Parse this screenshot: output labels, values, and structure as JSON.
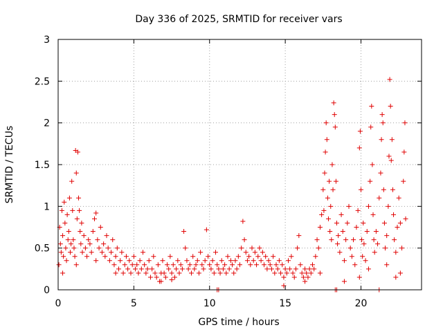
{
  "chart_data": {
    "type": "scatter",
    "title": "Day 336 of 2025, SRMTID for receiver vars",
    "xlabel": "GPS time / hours",
    "ylabel": "SRMTID / TECUs",
    "xlim": [
      0,
      24
    ],
    "ylim": [
      0,
      3
    ],
    "xticks": [
      0,
      5,
      10,
      15,
      20
    ],
    "xtick_labels": [
      "0",
      "5",
      "10",
      "15",
      "20"
    ],
    "yticks": [
      0,
      0.5,
      1,
      1.5,
      2,
      2.5,
      3
    ],
    "ytick_labels": [
      "0",
      "0.5",
      "1",
      "1.5",
      "2",
      "2.5",
      "3"
    ],
    "grid": true,
    "marker": "+",
    "series": [
      {
        "name": "SRMTID",
        "color": "#e00000",
        "points": [
          [
            0.05,
            0.3
          ],
          [
            0.1,
            0.75
          ],
          [
            0.15,
            0.55
          ],
          [
            0.2,
            0.45
          ],
          [
            0.25,
            0.95
          ],
          [
            0.3,
            0.65
          ],
          [
            0.35,
            0.4
          ],
          [
            0.4,
            1.05
          ],
          [
            0.45,
            0.8
          ],
          [
            0.5,
            0.5
          ],
          [
            0.55,
            0.35
          ],
          [
            0.6,
            0.9
          ],
          [
            0.65,
            0.6
          ],
          [
            0.7,
            0.7
          ],
          [
            0.75,
            1.1
          ],
          [
            0.8,
            0.45
          ],
          [
            0.85,
            0.55
          ],
          [
            0.9,
            1.3
          ],
          [
            0.95,
            0.95
          ],
          [
            1.0,
            0.6
          ],
          [
            1.05,
            0.5
          ],
          [
            1.1,
            0.4
          ],
          [
            1.15,
            1.67
          ],
          [
            1.2,
            1.4
          ],
          [
            1.25,
            0.85
          ],
          [
            1.3,
            1.65
          ],
          [
            1.35,
            1.1
          ],
          [
            1.4,
            0.95
          ],
          [
            1.45,
            0.7
          ],
          [
            1.5,
            0.55
          ],
          [
            1.55,
            0.8
          ],
          [
            1.6,
            0.45
          ],
          [
            1.7,
            0.65
          ],
          [
            1.8,
            0.5
          ],
          [
            1.9,
            0.4
          ],
          [
            2.0,
            0.6
          ],
          [
            2.1,
            0.55
          ],
          [
            2.2,
            0.45
          ],
          [
            2.3,
            0.7
          ],
          [
            2.4,
            0.85
          ],
          [
            2.5,
            0.92
          ],
          [
            2.6,
            0.6
          ],
          [
            2.7,
            0.5
          ],
          [
            2.8,
            0.75
          ],
          [
            2.9,
            0.45
          ],
          [
            3.0,
            0.55
          ],
          [
            3.1,
            0.4
          ],
          [
            3.2,
            0.65
          ],
          [
            3.3,
            0.5
          ],
          [
            3.4,
            0.35
          ],
          [
            3.5,
            0.45
          ],
          [
            3.6,
            0.6
          ],
          [
            3.7,
            0.3
          ],
          [
            3.8,
            0.4
          ],
          [
            3.9,
            0.5
          ],
          [
            4.0,
            0.25
          ],
          [
            4.1,
            0.35
          ],
          [
            4.2,
            0.45
          ],
          [
            4.3,
            0.2
          ],
          [
            4.4,
            0.3
          ],
          [
            4.5,
            0.4
          ],
          [
            4.6,
            0.25
          ],
          [
            4.7,
            0.35
          ],
          [
            4.8,
            0.2
          ],
          [
            4.9,
            0.3
          ],
          [
            5.0,
            0.4
          ],
          [
            5.1,
            0.25
          ],
          [
            5.2,
            0.3
          ],
          [
            5.3,
            0.2
          ],
          [
            5.4,
            0.35
          ],
          [
            5.5,
            0.25
          ],
          [
            5.6,
            0.45
          ],
          [
            5.7,
            0.3
          ],
          [
            5.8,
            0.2
          ],
          [
            5.9,
            0.25
          ],
          [
            6.0,
            0.35
          ],
          [
            6.1,
            0.15
          ],
          [
            6.2,
            0.25
          ],
          [
            6.3,
            0.4
          ],
          [
            6.4,
            0.2
          ],
          [
            6.5,
            0.15
          ],
          [
            6.6,
            0.3
          ],
          [
            6.7,
            0.1
          ],
          [
            6.8,
            0.2
          ],
          [
            6.9,
            0.35
          ],
          [
            7.0,
            0.2
          ],
          [
            7.1,
            0.15
          ],
          [
            7.2,
            0.3
          ],
          [
            7.3,
            0.25
          ],
          [
            7.4,
            0.4
          ],
          [
            7.5,
            0.2
          ],
          [
            7.6,
            0.3
          ],
          [
            7.7,
            0.15
          ],
          [
            7.8,
            0.25
          ],
          [
            7.9,
            0.35
          ],
          [
            8.0,
            0.2
          ],
          [
            8.1,
            0.3
          ],
          [
            8.2,
            0.25
          ],
          [
            8.3,
            0.7
          ],
          [
            8.4,
            0.5
          ],
          [
            8.5,
            0.35
          ],
          [
            8.6,
            0.25
          ],
          [
            8.7,
            0.3
          ],
          [
            8.8,
            0.2
          ],
          [
            8.9,
            0.4
          ],
          [
            9.0,
            0.25
          ],
          [
            9.1,
            0.3
          ],
          [
            9.2,
            0.35
          ],
          [
            9.3,
            0.2
          ],
          [
            9.4,
            0.45
          ],
          [
            9.5,
            0.3
          ],
          [
            9.6,
            0.25
          ],
          [
            9.7,
            0.35
          ],
          [
            9.8,
            0.72
          ],
          [
            9.9,
            0.4
          ],
          [
            10.0,
            0.3
          ],
          [
            10.1,
            0.25
          ],
          [
            10.2,
            0.35
          ],
          [
            10.3,
            0.2
          ],
          [
            10.4,
            0.45
          ],
          [
            10.5,
            0.3
          ],
          [
            10.6,
            0.25
          ],
          [
            10.7,
            0.2
          ],
          [
            10.8,
            0.35
          ],
          [
            10.9,
            0.25
          ],
          [
            11.0,
            0.3
          ],
          [
            11.1,
            0.2
          ],
          [
            11.2,
            0.4
          ],
          [
            11.3,
            0.25
          ],
          [
            11.4,
            0.35
          ],
          [
            11.5,
            0.3
          ],
          [
            11.6,
            0.2
          ],
          [
            11.7,
            0.35
          ],
          [
            11.8,
            0.25
          ],
          [
            11.9,
            0.4
          ],
          [
            12.0,
            0.3
          ],
          [
            12.1,
            0.5
          ],
          [
            12.2,
            0.82
          ],
          [
            12.3,
            0.6
          ],
          [
            12.4,
            0.45
          ],
          [
            12.5,
            0.35
          ],
          [
            12.6,
            0.4
          ],
          [
            12.7,
            0.3
          ],
          [
            12.8,
            0.5
          ],
          [
            12.9,
            0.35
          ],
          [
            13.0,
            0.45
          ],
          [
            13.1,
            0.3
          ],
          [
            13.2,
            0.4
          ],
          [
            13.3,
            0.5
          ],
          [
            13.4,
            0.35
          ],
          [
            13.5,
            0.45
          ],
          [
            13.6,
            0.3
          ],
          [
            13.7,
            0.4
          ],
          [
            13.8,
            0.25
          ],
          [
            13.9,
            0.35
          ],
          [
            14.0,
            0.3
          ],
          [
            14.1,
            0.25
          ],
          [
            14.2,
            0.4
          ],
          [
            14.3,
            0.2
          ],
          [
            14.4,
            0.3
          ],
          [
            14.5,
            0.25
          ],
          [
            14.6,
            0.35
          ],
          [
            14.7,
            0.2
          ],
          [
            14.8,
            0.3
          ],
          [
            14.9,
            0.15
          ],
          [
            15.0,
            0.25
          ],
          [
            15.1,
            0.2
          ],
          [
            15.2,
            0.35
          ],
          [
            15.3,
            0.25
          ],
          [
            15.4,
            0.4
          ],
          [
            15.5,
            0.2
          ],
          [
            15.6,
            0.15
          ],
          [
            15.7,
            0.25
          ],
          [
            15.8,
            0.5
          ],
          [
            15.9,
            0.65
          ],
          [
            16.0,
            0.3
          ],
          [
            16.1,
            0.2
          ],
          [
            16.2,
            0.15
          ],
          [
            16.3,
            0.25
          ],
          [
            16.4,
            0.2
          ],
          [
            16.5,
            0.15
          ],
          [
            16.6,
            0.25
          ],
          [
            16.7,
            0.2
          ],
          [
            16.8,
            0.3
          ],
          [
            16.9,
            0.25
          ],
          [
            17.0,
            0.4
          ],
          [
            17.1,
            0.6
          ],
          [
            17.2,
            0.5
          ],
          [
            17.3,
            0.75
          ],
          [
            17.4,
            0.9
          ],
          [
            17.5,
            1.2
          ],
          [
            17.55,
            0.95
          ],
          [
            17.6,
            1.4
          ],
          [
            17.65,
            1.65
          ],
          [
            17.7,
            2.0
          ],
          [
            17.75,
            1.8
          ],
          [
            17.8,
            1.1
          ],
          [
            17.85,
            0.85
          ],
          [
            17.9,
            1.3
          ],
          [
            17.95,
            0.7
          ],
          [
            18.0,
            1.0
          ],
          [
            18.05,
            0.6
          ],
          [
            18.1,
            1.5
          ],
          [
            18.15,
            1.2
          ],
          [
            18.2,
            2.24
          ],
          [
            18.25,
            2.1
          ],
          [
            18.3,
            1.95
          ],
          [
            18.35,
            1.3
          ],
          [
            18.4,
            0.8
          ],
          [
            18.45,
            0.55
          ],
          [
            18.5,
            0.65
          ],
          [
            18.6,
            0.45
          ],
          [
            18.7,
            0.9
          ],
          [
            18.8,
            0.7
          ],
          [
            18.9,
            0.35
          ],
          [
            19.0,
            0.6
          ],
          [
            19.1,
            0.8
          ],
          [
            19.2,
            1.0
          ],
          [
            19.3,
            0.5
          ],
          [
            19.4,
            0.4
          ],
          [
            19.5,
            0.6
          ],
          [
            19.6,
            0.3
          ],
          [
            19.7,
            0.75
          ],
          [
            19.8,
            0.95
          ],
          [
            19.9,
            1.7
          ],
          [
            19.95,
            1.9
          ],
          [
            20.0,
            1.2
          ],
          [
            20.05,
            0.6
          ],
          [
            20.1,
            0.4
          ],
          [
            20.15,
            0.8
          ],
          [
            20.2,
            0.55
          ],
          [
            20.3,
            0.35
          ],
          [
            20.4,
            0.7
          ],
          [
            20.5,
            1.0
          ],
          [
            20.6,
            1.3
          ],
          [
            20.65,
            1.95
          ],
          [
            20.7,
            2.2
          ],
          [
            20.75,
            1.5
          ],
          [
            20.8,
            0.9
          ],
          [
            20.85,
            0.6
          ],
          [
            20.9,
            0.45
          ],
          [
            21.0,
            0.7
          ],
          [
            21.1,
            0.55
          ],
          [
            21.2,
            1.1
          ],
          [
            21.3,
            1.4
          ],
          [
            21.35,
            1.8
          ],
          [
            21.4,
            2.1
          ],
          [
            21.45,
            2.0
          ],
          [
            21.5,
            1.2
          ],
          [
            21.55,
            0.8
          ],
          [
            21.6,
            0.5
          ],
          [
            21.7,
            0.65
          ],
          [
            21.8,
            1.0
          ],
          [
            21.85,
            1.6
          ],
          [
            21.9,
            2.52
          ],
          [
            21.95,
            2.2
          ],
          [
            22.0,
            1.55
          ],
          [
            22.05,
            1.8
          ],
          [
            22.1,
            1.2
          ],
          [
            22.15,
            0.9
          ],
          [
            22.2,
            0.6
          ],
          [
            22.3,
            0.45
          ],
          [
            22.4,
            0.75
          ],
          [
            22.5,
            1.1
          ],
          [
            22.6,
            0.8
          ],
          [
            22.7,
            0.5
          ],
          [
            22.8,
            1.3
          ],
          [
            22.85,
            1.65
          ],
          [
            22.9,
            2.0
          ],
          [
            22.95,
            0.85
          ],
          [
            0.3,
            0.2
          ],
          [
            1.2,
            0.3
          ],
          [
            2.5,
            0.35
          ],
          [
            3.8,
            0.2
          ],
          [
            6.8,
            0.1
          ],
          [
            7.5,
            0.12
          ],
          [
            10.5,
            0.0
          ],
          [
            10.6,
            0.0
          ],
          [
            14.9,
            0.05
          ],
          [
            16.3,
            0.1
          ],
          [
            18.3,
            0.0
          ],
          [
            18.4,
            0.0
          ],
          [
            21.2,
            0.0
          ],
          [
            19.9,
            0.15
          ],
          [
            20.5,
            0.25
          ],
          [
            22.6,
            0.2
          ],
          [
            18.9,
            0.1
          ],
          [
            17.3,
            0.2
          ],
          [
            21.7,
            0.3
          ],
          [
            22.3,
            0.15
          ]
        ]
      }
    ]
  }
}
